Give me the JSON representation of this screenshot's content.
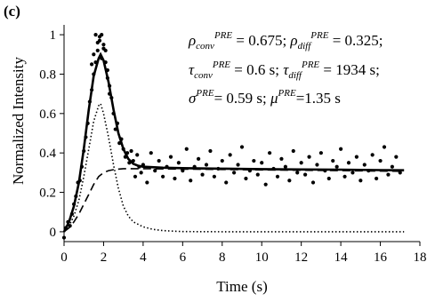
{
  "chart_data": {
    "type": "scatter",
    "panel_label": "(c)",
    "title": "",
    "xlabel": "Time (s)",
    "ylabel": "Normalized Intensity",
    "xlim": [
      0,
      18
    ],
    "ylim": [
      -0.05,
      1.05
    ],
    "x_ticks": [
      0,
      2,
      4,
      6,
      8,
      10,
      12,
      14,
      16,
      18
    ],
    "y_ticks": [
      0,
      0.2,
      0.4,
      0.6,
      0.8,
      1
    ],
    "x_tick_labels": [
      "0",
      "2",
      "4",
      "6",
      "8",
      "10",
      "12",
      "14",
      "16",
      "18"
    ],
    "y_tick_labels": [
      "0",
      "0.2",
      "0.4",
      "0.6",
      "0.8",
      "1"
    ],
    "grid": false,
    "legend": "none",
    "annotation": {
      "line1": {
        "a": "ρ",
        "a_sub": "conv",
        "a_sup": "PRE",
        "a_val": " = 0.675; ",
        "b": "ρ",
        "b_sub": "diff",
        "b_sup": "PRE",
        "b_val": " = 0.325;"
      },
      "line2": {
        "a": "τ",
        "a_sub": "conv",
        "a_sup": "PRE",
        "a_val": " = 0.6 s; ",
        "b": "τ",
        "b_sub": "diff",
        "b_sup": "PRE",
        "b_val": " = 1934 s;"
      },
      "line3": {
        "a": "σ",
        "a_sup": "PRE",
        "a_val": "= 0.59 s; ",
        "b": "μ",
        "b_sup": "PRE",
        "b_val": "=1.35 s"
      }
    },
    "series": [
      {
        "style": "dots",
        "x": [
          0.0,
          0.1,
          0.2,
          0.3,
          0.4,
          0.5,
          0.6,
          0.7,
          0.8,
          0.9,
          1.0,
          1.1,
          1.2,
          1.3,
          1.4,
          1.5,
          1.6,
          1.7,
          1.8,
          1.9,
          2.0,
          2.1,
          2.2,
          2.3,
          2.4,
          2.5,
          2.6,
          2.7,
          2.8,
          2.9,
          3.0,
          3.1,
          3.2,
          3.3,
          3.4,
          3.5,
          3.6,
          3.7,
          3.8,
          3.9,
          4.0,
          4.2,
          4.4,
          4.6,
          4.8,
          5.0,
          5.2,
          5.4,
          5.6,
          5.8,
          6.0,
          6.2,
          6.4,
          6.6,
          6.8,
          7.0,
          7.2,
          7.4,
          7.6,
          7.8,
          8.0,
          8.2,
          8.4,
          8.6,
          8.8,
          9.0,
          9.2,
          9.4,
          9.6,
          9.8,
          10.0,
          10.2,
          10.4,
          10.6,
          10.8,
          11.0,
          11.2,
          11.4,
          11.6,
          11.8,
          12.0,
          12.2,
          12.4,
          12.6,
          12.8,
          13.0,
          13.2,
          13.4,
          13.6,
          13.8,
          14.0,
          14.2,
          14.4,
          14.6,
          14.8,
          15.0,
          15.2,
          15.4,
          15.6,
          15.8,
          16.0,
          16.2,
          16.4,
          16.6,
          16.8,
          17.0,
          1.6,
          1.7,
          1.8,
          1.9,
          2.0,
          1.5,
          2.1,
          2.2,
          1.4,
          2.3
        ],
        "y": [
          -0.03,
          0.02,
          0.05,
          0.03,
          0.09,
          0.14,
          0.18,
          0.25,
          0.26,
          0.33,
          0.41,
          0.48,
          0.55,
          0.66,
          0.72,
          0.8,
          0.86,
          0.92,
          0.97,
          0.88,
          0.93,
          0.86,
          0.78,
          0.7,
          0.68,
          0.6,
          0.52,
          0.55,
          0.45,
          0.47,
          0.42,
          0.38,
          0.4,
          0.35,
          0.41,
          0.36,
          0.28,
          0.39,
          0.33,
          0.3,
          0.34,
          0.25,
          0.4,
          0.31,
          0.36,
          0.28,
          0.33,
          0.38,
          0.27,
          0.35,
          0.31,
          0.42,
          0.26,
          0.33,
          0.37,
          0.29,
          0.34,
          0.41,
          0.28,
          0.32,
          0.36,
          0.25,
          0.39,
          0.3,
          0.34,
          0.43,
          0.27,
          0.31,
          0.36,
          0.29,
          0.35,
          0.24,
          0.4,
          0.32,
          0.28,
          0.37,
          0.33,
          0.26,
          0.41,
          0.3,
          0.35,
          0.29,
          0.38,
          0.25,
          0.34,
          0.4,
          0.31,
          0.27,
          0.36,
          0.33,
          0.42,
          0.28,
          0.35,
          0.3,
          0.38,
          0.26,
          0.34,
          0.31,
          0.39,
          0.27,
          0.36,
          0.43,
          0.29,
          0.33,
          0.38,
          0.3,
          1.0,
          0.96,
          0.99,
          1.0,
          0.95,
          0.9,
          0.92,
          0.82,
          0.85,
          0.74
        ]
      },
      {
        "style": "solid-thick",
        "x": [
          0,
          0.25,
          0.5,
          0.75,
          1.0,
          1.25,
          1.5,
          1.75,
          1.85,
          2.0,
          2.25,
          2.5,
          2.75,
          3.0,
          3.25,
          3.5,
          3.75,
          4.0,
          5.0,
          6.0,
          8.0,
          10.0,
          12.0,
          14.0,
          16.0,
          17.2
        ],
        "y": [
          0.0,
          0.05,
          0.13,
          0.25,
          0.42,
          0.62,
          0.79,
          0.88,
          0.9,
          0.87,
          0.76,
          0.62,
          0.5,
          0.42,
          0.37,
          0.345,
          0.335,
          0.33,
          0.325,
          0.323,
          0.32,
          0.318,
          0.316,
          0.315,
          0.313,
          0.312
        ]
      },
      {
        "style": "dashed",
        "x": [
          0,
          0.25,
          0.5,
          0.75,
          1.0,
          1.25,
          1.5,
          1.75,
          2.0,
          2.25,
          2.5,
          3.0,
          4.0,
          6.0,
          8.0,
          10.0,
          12.0,
          14.0,
          16.0,
          17.2
        ],
        "y": [
          0.0,
          0.02,
          0.05,
          0.09,
          0.14,
          0.19,
          0.24,
          0.28,
          0.3,
          0.31,
          0.315,
          0.32,
          0.32,
          0.318,
          0.316,
          0.314,
          0.312,
          0.31,
          0.308,
          0.307
        ]
      },
      {
        "style": "dotted",
        "x": [
          0,
          0.25,
          0.5,
          0.75,
          1.0,
          1.25,
          1.5,
          1.75,
          1.85,
          2.0,
          2.25,
          2.5,
          2.75,
          3.0,
          3.25,
          3.5,
          4.0,
          4.5,
          5.0,
          5.5,
          6.0,
          8.0,
          10.0,
          12.0,
          14.0,
          16.0,
          17.2
        ],
        "y": [
          0.0,
          0.03,
          0.08,
          0.16,
          0.28,
          0.42,
          0.56,
          0.64,
          0.65,
          0.6,
          0.48,
          0.34,
          0.22,
          0.13,
          0.08,
          0.05,
          0.025,
          0.012,
          0.006,
          0.003,
          0.001,
          0.0,
          0.0,
          0.0,
          0.0,
          0.0,
          0.0
        ]
      }
    ]
  }
}
